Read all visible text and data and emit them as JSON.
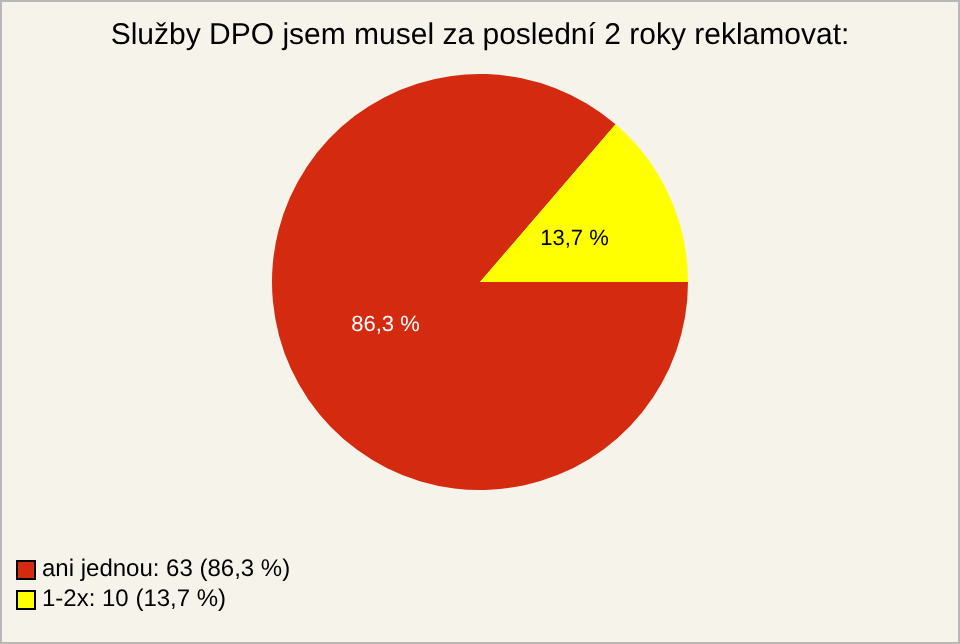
{
  "chart_data": {
    "type": "pie",
    "title": "Služby DPO jsem musel za poslední 2 roky reklamovat:",
    "categories": [
      "ani jednou: 63 (86,3 %)",
      "1-2x: 10 (13,7 %)"
    ],
    "values": [
      86.3,
      13.7
    ],
    "value_labels": [
      "86,3 %",
      "13,7 %"
    ],
    "colors": [
      "#d42a10",
      "#ffff00"
    ],
    "legend": "bottom left"
  }
}
